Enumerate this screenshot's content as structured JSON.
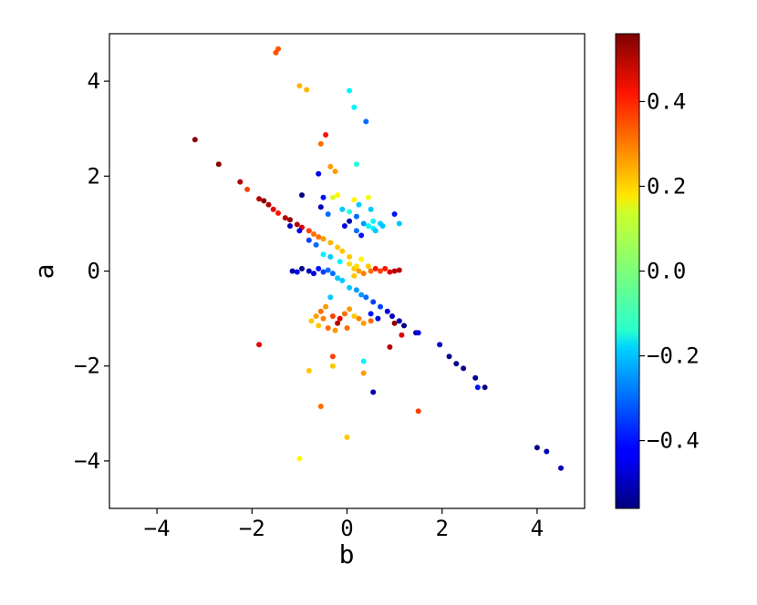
{
  "chart_data": {
    "type": "scatter",
    "title": "",
    "xlabel": "b",
    "ylabel": "a",
    "xlim": [
      -5,
      5
    ],
    "ylim": [
      -5,
      5
    ],
    "xticks": [
      -4,
      -2,
      0,
      2,
      4
    ],
    "yticks": [
      -4,
      -2,
      0,
      2,
      4
    ],
    "xtick_labels": [
      "−4",
      "−2",
      "0",
      "2",
      "4"
    ],
    "ytick_labels": [
      "−4",
      "−2",
      "0",
      "2",
      "4"
    ],
    "grid": false,
    "colorbar": {
      "colormap": "jet",
      "range": [
        -0.56,
        0.56
      ],
      "ticks": [
        -0.4,
        -0.2,
        0.0,
        0.2,
        0.4
      ],
      "tick_labels": [
        "−0.4",
        "−0.2",
        "0.0",
        "0.2",
        "0.4"
      ]
    },
    "points": [
      [
        -1.45,
        4.68,
        0.33
      ],
      [
        -1.5,
        4.6,
        0.33
      ],
      [
        -1.0,
        3.9,
        0.22
      ],
      [
        -0.85,
        3.82,
        0.22
      ],
      [
        0.05,
        3.8,
        -0.15
      ],
      [
        0.15,
        3.45,
        -0.15
      ],
      [
        0.4,
        3.15,
        -0.3
      ],
      [
        -3.2,
        2.77,
        0.55
      ],
      [
        -2.7,
        2.25,
        0.55
      ],
      [
        -0.45,
        2.87,
        0.4
      ],
      [
        -0.55,
        2.68,
        0.3
      ],
      [
        -0.35,
        2.2,
        0.25
      ],
      [
        -0.25,
        2.1,
        0.25
      ],
      [
        0.2,
        2.25,
        -0.1
      ],
      [
        -2.25,
        1.88,
        0.5
      ],
      [
        -2.1,
        1.72,
        0.35
      ],
      [
        -1.85,
        1.52,
        0.5
      ],
      [
        -1.75,
        1.48,
        0.55
      ],
      [
        -1.65,
        1.4,
        0.5
      ],
      [
        -1.55,
        1.3,
        0.45
      ],
      [
        -1.45,
        1.22,
        0.4
      ],
      [
        -1.3,
        1.12,
        0.5
      ],
      [
        -1.2,
        1.08,
        0.55
      ],
      [
        -1.05,
        0.98,
        0.5
      ],
      [
        -0.95,
        0.92,
        0.45
      ],
      [
        -0.8,
        0.85,
        0.35
      ],
      [
        -0.7,
        0.78,
        0.3
      ],
      [
        -0.6,
        0.72,
        0.3
      ],
      [
        -0.5,
        0.68,
        0.25
      ],
      [
        -0.35,
        0.6,
        0.22
      ],
      [
        -0.2,
        0.5,
        0.2
      ],
      [
        -0.1,
        0.42,
        0.2
      ],
      [
        -0.6,
        2.05,
        -0.45
      ],
      [
        -0.95,
        1.6,
        -0.55
      ],
      [
        -0.5,
        1.55,
        -0.4
      ],
      [
        -0.3,
        1.55,
        0.1
      ],
      [
        -0.2,
        1.6,
        0.15
      ],
      [
        -0.55,
        1.35,
        -0.5
      ],
      [
        -0.4,
        1.2,
        -0.3
      ],
      [
        -0.1,
        1.3,
        -0.2
      ],
      [
        0.05,
        1.25,
        -0.1
      ],
      [
        0.15,
        1.5,
        0.15
      ],
      [
        0.25,
        1.4,
        -0.2
      ],
      [
        0.2,
        1.15,
        -0.3
      ],
      [
        0.35,
        1.0,
        -0.25
      ],
      [
        0.45,
        0.95,
        -0.15
      ],
      [
        0.55,
        0.9,
        -0.15
      ],
      [
        0.3,
        0.75,
        -0.4
      ],
      [
        0.2,
        0.85,
        -0.3
      ],
      [
        0.45,
        1.55,
        0.12
      ],
      [
        0.5,
        1.3,
        -0.2
      ],
      [
        0.55,
        1.05,
        -0.15
      ],
      [
        0.6,
        0.85,
        -0.2
      ],
      [
        0.7,
        1.0,
        -0.2
      ],
      [
        0.75,
        0.95,
        -0.2
      ],
      [
        1.0,
        1.2,
        -0.4
      ],
      [
        1.1,
        1.0,
        -0.2
      ],
      [
        0.05,
        1.05,
        -0.5
      ],
      [
        -0.05,
        0.95,
        -0.45
      ],
      [
        -1.2,
        0.95,
        -0.5
      ],
      [
        -1.0,
        0.85,
        -0.45
      ],
      [
        -0.8,
        0.65,
        -0.35
      ],
      [
        -0.65,
        0.55,
        -0.3
      ],
      [
        -0.5,
        0.35,
        -0.15
      ],
      [
        -0.35,
        0.3,
        -0.2
      ],
      [
        -0.15,
        0.2,
        -0.15
      ],
      [
        -1.15,
        0.0,
        -0.5
      ],
      [
        -1.05,
        -0.02,
        -0.45
      ],
      [
        -0.95,
        0.05,
        -0.55
      ],
      [
        -0.8,
        0.0,
        -0.5
      ],
      [
        -0.7,
        -0.05,
        -0.45
      ],
      [
        -0.6,
        0.05,
        -0.4
      ],
      [
        -0.5,
        -0.02,
        -0.35
      ],
      [
        -0.4,
        0.02,
        -0.3
      ],
      [
        -0.3,
        -0.05,
        -0.3
      ],
      [
        -0.2,
        -0.15,
        -0.2
      ],
      [
        -0.1,
        -0.2,
        -0.2
      ],
      [
        0.05,
        0.15,
        0.18
      ],
      [
        0.15,
        0.05,
        0.2
      ],
      [
        0.25,
        0.0,
        0.25
      ],
      [
        0.35,
        -0.05,
        0.28
      ],
      [
        0.5,
        0.0,
        0.3
      ],
      [
        0.6,
        0.05,
        0.4
      ],
      [
        0.7,
        0.0,
        0.35
      ],
      [
        0.8,
        0.05,
        0.4
      ],
      [
        0.9,
        -0.02,
        0.45
      ],
      [
        1.0,
        0.0,
        0.5
      ],
      [
        1.1,
        0.02,
        0.5
      ],
      [
        0.45,
        0.1,
        0.2
      ],
      [
        0.3,
        0.25,
        0.15
      ],
      [
        0.2,
        0.1,
        0.18
      ],
      [
        0.05,
        0.3,
        0.2
      ],
      [
        0.15,
        -0.1,
        0.2
      ],
      [
        0.05,
        -0.35,
        -0.2
      ],
      [
        0.2,
        -0.4,
        -0.25
      ],
      [
        0.3,
        -0.5,
        -0.25
      ],
      [
        0.4,
        -0.55,
        -0.3
      ],
      [
        0.55,
        -0.65,
        -0.35
      ],
      [
        0.7,
        -0.75,
        -0.35
      ],
      [
        0.85,
        -0.85,
        -0.45
      ],
      [
        0.95,
        -0.95,
        -0.5
      ],
      [
        1.1,
        -1.05,
        -0.5
      ],
      [
        1.2,
        -1.15,
        -0.55
      ],
      [
        0.5,
        -0.9,
        -0.4
      ],
      [
        0.65,
        -1.0,
        -0.45
      ],
      [
        -0.35,
        -0.55,
        -0.2
      ],
      [
        -0.45,
        -0.75,
        0.25
      ],
      [
        -0.55,
        -0.85,
        0.3
      ],
      [
        -0.65,
        -0.95,
        0.25
      ],
      [
        -0.75,
        -1.05,
        0.2
      ],
      [
        -0.5,
        -1.0,
        0.28
      ],
      [
        -0.3,
        -0.95,
        0.35
      ],
      [
        -0.2,
        -1.1,
        0.5
      ],
      [
        -0.15,
        -1.0,
        0.45
      ],
      [
        -0.05,
        -0.9,
        0.3
      ],
      [
        0.05,
        -0.8,
        0.25
      ],
      [
        0.15,
        -0.95,
        0.2
      ],
      [
        0.25,
        -1.0,
        0.28
      ],
      [
        0.35,
        -1.1,
        0.25
      ],
      [
        0.0,
        -1.2,
        0.3
      ],
      [
        -0.4,
        -1.2,
        0.3
      ],
      [
        -0.25,
        -1.25,
        0.25
      ],
      [
        -0.6,
        -1.15,
        0.2
      ],
      [
        0.5,
        -1.05,
        0.3
      ],
      [
        1.0,
        -1.1,
        0.55
      ],
      [
        1.15,
        -1.35,
        0.45
      ],
      [
        0.9,
        -1.6,
        0.5
      ],
      [
        -1.85,
        -1.55,
        0.45
      ],
      [
        1.45,
        -1.3,
        -0.5
      ],
      [
        1.5,
        -1.3,
        -0.45
      ],
      [
        1.95,
        -1.55,
        -0.5
      ],
      [
        2.15,
        -1.8,
        -0.55
      ],
      [
        2.3,
        -1.95,
        -0.55
      ],
      [
        2.45,
        -2.05,
        -0.55
      ],
      [
        2.7,
        -2.25,
        -0.55
      ],
      [
        2.75,
        -2.45,
        -0.4
      ],
      [
        2.9,
        -2.45,
        -0.55
      ],
      [
        4.0,
        -3.72,
        -0.55
      ],
      [
        4.2,
        -3.8,
        -0.5
      ],
      [
        4.5,
        -4.15,
        -0.5
      ],
      [
        -0.3,
        -1.8,
        0.35
      ],
      [
        -0.3,
        -2.0,
        0.2
      ],
      [
        -0.8,
        -2.1,
        0.2
      ],
      [
        0.35,
        -1.9,
        -0.15
      ],
      [
        0.35,
        -2.15,
        0.25
      ],
      [
        0.55,
        -2.55,
        -0.5
      ],
      [
        1.5,
        -2.95,
        0.35
      ],
      [
        -0.55,
        -2.85,
        0.3
      ],
      [
        0.0,
        -3.5,
        0.2
      ],
      [
        -1.0,
        -3.95,
        0.15
      ]
    ]
  }
}
